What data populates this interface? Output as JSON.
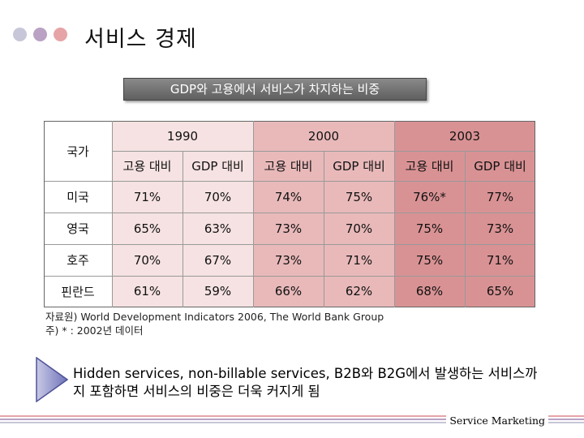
{
  "slide": {
    "title": "서비스 경제",
    "subtitle": "GDP와 고용에서 서비스가 차지하는 비중",
    "dot_colors": [
      "#c7c7d9",
      "#b9a2c4",
      "#e6a4a7"
    ]
  },
  "table": {
    "country_header": "국가",
    "years": [
      "1990",
      "2000",
      "2003"
    ],
    "subheaders": [
      "고용 대비",
      "GDP 대비",
      "고용 대비",
      "GDP 대비",
      "고용 대비",
      "GDP 대비"
    ],
    "rows": [
      {
        "country": "미국",
        "values": [
          "71%",
          "70%",
          "74%",
          "75%",
          "76%*",
          "77%"
        ]
      },
      {
        "country": "영국",
        "values": [
          "65%",
          "63%",
          "73%",
          "70%",
          "75%",
          "73%"
        ]
      },
      {
        "country": "호주",
        "values": [
          "70%",
          "67%",
          "73%",
          "71%",
          "75%",
          "71%"
        ]
      },
      {
        "country": "핀란드",
        "values": [
          "61%",
          "59%",
          "66%",
          "62%",
          "68%",
          "65%"
        ]
      }
    ]
  },
  "source": {
    "line1": "자료원) World Development Indicators 2006, The World Bank Group",
    "line2": "주) * : 2002년 데이터"
  },
  "note": {
    "text": "Hidden services, non-billable services, B2B와 B2G에서 발생하는 서비스까지 포함하면 서비스의 비중은 더욱 커지게 됨"
  },
  "footer": {
    "label": "Service Marketing"
  }
}
